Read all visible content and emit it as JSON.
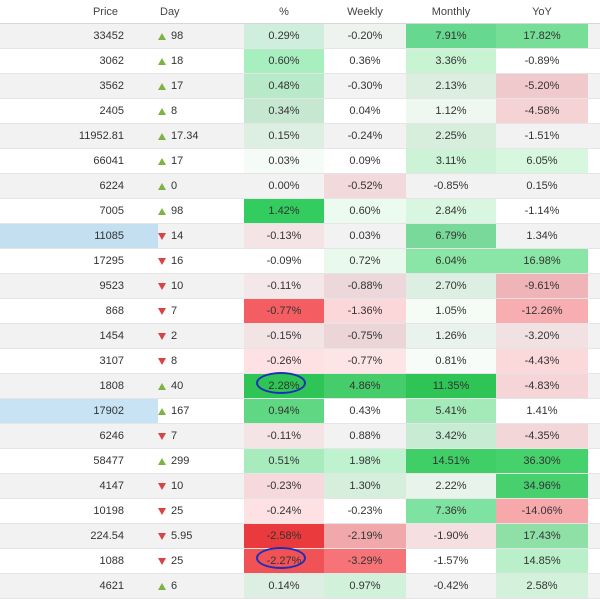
{
  "columns": [
    "Price",
    "Day",
    "%",
    "Weekly",
    "Monthly",
    "YoY"
  ],
  "rows": [
    {
      "price": "33452",
      "dir": "up",
      "day": "98",
      "pct": "0.29%",
      "weekly": "-0.20%",
      "monthly": "7.91%",
      "yoy": "17.82%",
      "c": {
        "pct": "#cfeedd",
        "weekly": "#eef3f0",
        "monthly": "#66d88f",
        "yoy": "#77de97"
      }
    },
    {
      "price": "3062",
      "dir": "up",
      "day": "18",
      "pct": "0.60%",
      "weekly": "0.36%",
      "monthly": "3.36%",
      "yoy": "-0.89%",
      "c": {
        "pct": "#a7efbf",
        "weekly": "#ffffff",
        "monthly": "#c8f4d4",
        "yoy": "#ffffff"
      }
    },
    {
      "price": "3562",
      "dir": "up",
      "day": "17",
      "pct": "0.48%",
      "weekly": "-0.30%",
      "monthly": "2.13%",
      "yoy": "-5.20%",
      "c": {
        "pct": "#b8e9c8",
        "weekly": "#f3f3f3",
        "monthly": "#dbeedf",
        "yoy": "#f0c9cc"
      }
    },
    {
      "price": "2405",
      "dir": "up",
      "day": "8",
      "pct": "0.34%",
      "weekly": "0.04%",
      "monthly": "1.12%",
      "yoy": "-4.58%",
      "c": {
        "pct": "#c6e8d1",
        "weekly": "#ffffff",
        "monthly": "#eef8f0",
        "yoy": "#f5d3d5"
      }
    },
    {
      "price": "11952.81",
      "dir": "up",
      "day": "17.34",
      "pct": "0.15%",
      "weekly": "-0.24%",
      "monthly": "2.25%",
      "yoy": "-1.51%",
      "c": {
        "pct": "#dcefe2",
        "weekly": "#f2f2f2",
        "monthly": "#d8eedd",
        "yoy": "#f2f2f2"
      }
    },
    {
      "price": "66041",
      "dir": "up",
      "day": "17",
      "pct": "0.03%",
      "weekly": "0.09%",
      "monthly": "3.11%",
      "yoy": "6.05%",
      "c": {
        "pct": "#f5fbf6",
        "weekly": "#ffffff",
        "monthly": "#cdf3d7",
        "yoy": "#d8f7df"
      }
    },
    {
      "price": "6224",
      "dir": "up",
      "day": "0",
      "pct": "0.00%",
      "weekly": "-0.52%",
      "monthly": "-0.85%",
      "yoy": "0.15%",
      "c": {
        "pct": "#f2f2f2",
        "weekly": "#f2d9dc",
        "monthly": "#f2f2f2",
        "yoy": "#f2f2f2"
      }
    },
    {
      "price": "7005",
      "dir": "up",
      "day": "98",
      "pct": "1.42%",
      "weekly": "0.60%",
      "monthly": "2.84%",
      "yoy": "-1.14%",
      "c": {
        "pct": "#33cc5e",
        "weekly": "#ecfbef",
        "monthly": "#d9f6e0",
        "yoy": "#ffffff"
      }
    },
    {
      "price": "11085",
      "dir": "down",
      "day": "14",
      "pct": "-0.13%",
      "weekly": "0.03%",
      "monthly": "6.79%",
      "yoy": "1.34%",
      "c": {
        "price": "#c3dff0",
        "pct": "#f5e4e6",
        "weekly": "#f2f2f2",
        "monthly": "#78d99b",
        "yoy": "#f2f2f2"
      }
    },
    {
      "price": "17295",
      "dir": "down",
      "day": "16",
      "pct": "-0.09%",
      "weekly": "0.72%",
      "monthly": "6.04%",
      "yoy": "16.98%",
      "c": {
        "pct": "#ffffff",
        "weekly": "#eaf9ed",
        "monthly": "#8ae6a6",
        "yoy": "#8ae6a6"
      }
    },
    {
      "price": "9523",
      "dir": "down",
      "day": "10",
      "pct": "-0.11%",
      "weekly": "-0.88%",
      "monthly": "2.70%",
      "yoy": "-9.61%",
      "c": {
        "pct": "#f4e7e9",
        "weekly": "#ecd8da",
        "monthly": "#ddefe2",
        "yoy": "#efb4b8"
      }
    },
    {
      "price": "868",
      "dir": "down",
      "day": "7",
      "pct": "-0.77%",
      "weekly": "-1.36%",
      "monthly": "1.05%",
      "yoy": "-12.26%",
      "c": {
        "pct": "#f45e62",
        "weekly": "#fbd7d9",
        "monthly": "#f5fcf6",
        "yoy": "#f8aeb1"
      }
    },
    {
      "price": "1454",
      "dir": "down",
      "day": "2",
      "pct": "-0.15%",
      "weekly": "-0.75%",
      "monthly": "1.26%",
      "yoy": "-3.20%",
      "c": {
        "pct": "#f2e3e5",
        "weekly": "#ecd5d7",
        "monthly": "#e9f2ec",
        "yoy": "#f2e1e2"
      }
    },
    {
      "price": "3107",
      "dir": "down",
      "day": "8",
      "pct": "-0.26%",
      "weekly": "-0.77%",
      "monthly": "0.81%",
      "yoy": "-4.43%",
      "c": {
        "pct": "#fde1e3",
        "weekly": "#fde5e6",
        "monthly": "#f7fcf8",
        "yoy": "#fbd9db"
      }
    },
    {
      "price": "1808",
      "dir": "up",
      "day": "40",
      "pct": "2.28%",
      "weekly": "4.86%",
      "monthly": "11.35%",
      "yoy": "-4.83%",
      "c": {
        "pct": "#2fc456",
        "weekly": "#45cd6c",
        "monthly": "#2fc456",
        "yoy": "#f5d5d7"
      }
    },
    {
      "price": "17902",
      "dir": "up",
      "day": "167",
      "pct": "0.94%",
      "weekly": "0.43%",
      "monthly": "5.41%",
      "yoy": "1.41%",
      "c": {
        "price": "#c8e3f3",
        "pct": "#5fd783",
        "weekly": "#ffffff",
        "monthly": "#a3eab8",
        "yoy": "#ffffff"
      }
    },
    {
      "price": "6246",
      "dir": "down",
      "day": "7",
      "pct": "-0.11%",
      "weekly": "0.88%",
      "monthly": "3.42%",
      "yoy": "-4.35%",
      "c": {
        "pct": "#f5e4e6",
        "weekly": "#f2f2f2",
        "monthly": "#c8ecd3",
        "yoy": "#f3d6d8"
      }
    },
    {
      "price": "58477",
      "dir": "up",
      "day": "299",
      "pct": "0.51%",
      "weekly": "1.98%",
      "monthly": "14.51%",
      "yoy": "36.30%",
      "c": {
        "pct": "#a8ebbd",
        "weekly": "#bff2cf",
        "monthly": "#3fcf66",
        "yoy": "#45d26c"
      }
    },
    {
      "price": "4147",
      "dir": "down",
      "day": "10",
      "pct": "-0.23%",
      "weekly": "1.30%",
      "monthly": "2.22%",
      "yoy": "34.96%",
      "c": {
        "pct": "#f5d9dc",
        "weekly": "#d6efdd",
        "monthly": "#e8f4eb",
        "yoy": "#48d06f"
      }
    },
    {
      "price": "10198",
      "dir": "down",
      "day": "25",
      "pct": "-0.24%",
      "weekly": "-0.23%",
      "monthly": "7.36%",
      "yoy": "-14.06%",
      "c": {
        "pct": "#fde1e3",
        "weekly": "#ffffff",
        "monthly": "#7ee3a0",
        "yoy": "#f7a8ab"
      }
    },
    {
      "price": "224.54",
      "dir": "down",
      "day": "5.95",
      "pct": "-2.58%",
      "weekly": "-2.19%",
      "monthly": "-1.90%",
      "yoy": "17.43%",
      "c": {
        "pct": "#ea3a3d",
        "weekly": "#f0a8ab",
        "monthly": "#f5dfe1",
        "yoy": "#8ee0a6"
      }
    },
    {
      "price": "1088",
      "dir": "down",
      "day": "25",
      "pct": "-2.27%",
      "weekly": "-3.29%",
      "monthly": "-1.57%",
      "yoy": "14.85%",
      "c": {
        "pct": "#f15256",
        "weekly": "#f67478",
        "monthly": "#ffffff",
        "yoy": "#b9f0c9"
      }
    },
    {
      "price": "4621",
      "dir": "up",
      "day": "6",
      "pct": "0.14%",
      "weekly": "0.97%",
      "monthly": "-0.42%",
      "yoy": "2.58%",
      "c": {
        "pct": "#dcefe2",
        "weekly": "#d1f1db",
        "monthly": "#f2f2f2",
        "yoy": "#d4f1dc"
      }
    }
  ],
  "annotations": [
    {
      "row_index": 14,
      "column": "pct",
      "shape": "hand-drawn-circle",
      "color": "#1d2fb8"
    },
    {
      "row_index": 21,
      "column": "pct",
      "shape": "hand-drawn-circle",
      "color": "#1d2fb8"
    }
  ]
}
